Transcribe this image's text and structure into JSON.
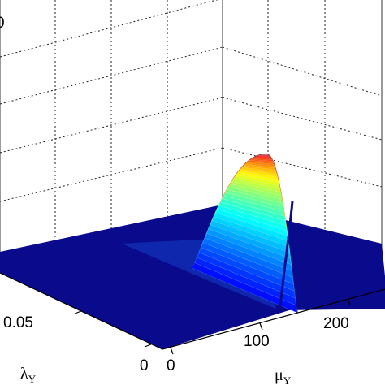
{
  "chart_data": {
    "type": "surface",
    "colormap": "jet",
    "grid": true,
    "x_axis": {
      "label_symbol": "μ",
      "label_subscript": "Y",
      "ticks": [
        {
          "value": 0,
          "label": "0"
        },
        {
          "value": 100,
          "label": "100"
        },
        {
          "value": 200,
          "label": "200"
        }
      ],
      "range": [
        0,
        240
      ]
    },
    "y_axis": {
      "label_symbol": "λ",
      "label_subscript": "Y",
      "ticks": [
        {
          "value": 0,
          "label": "0"
        },
        {
          "value": 0.05,
          "label": "0.05"
        }
      ],
      "range": [
        0,
        0.1
      ]
    },
    "z_axis": {
      "partial_tick_label": "0"
    },
    "surface": {
      "description_of_peak": {
        "mu_y": 135,
        "lambda_y": 0.004
      },
      "peak_relative_height": 1.0
    }
  }
}
